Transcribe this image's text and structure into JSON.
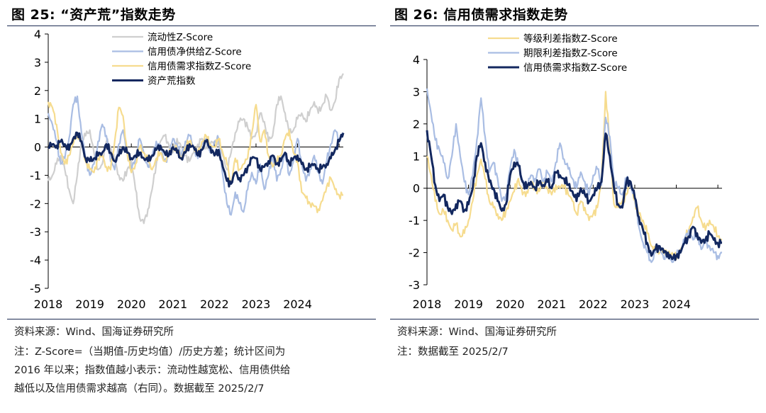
{
  "left_panel": {
    "figure_title": "图 25:   “资产荒”指数走势",
    "source": "资料来源：Wind、国海证券研究所",
    "note_lines": [
      "注：Z-Score=（当期值-历史均值）/历史方差；统计区间为",
      "2016 年以来；指数值越小表示：流动性越宽松、信用债供给",
      "越低以及信用债需求越高（右同）。数据截至 2025/2/7"
    ]
  },
  "right_panel": {
    "figure_title": "图 26:  信用债需求指数走势",
    "source": "资料来源：Wind、国海证券研究所",
    "note_lines": [
      "注：数据截至 2025/2/7"
    ]
  },
  "chart_data": [
    {
      "type": "line",
      "title": "“资产荒”指数走势",
      "xlabel": "",
      "ylabel": "",
      "x_range": [
        2018.0,
        2025.1
      ],
      "ylim": [
        -5,
        4
      ],
      "yticks": [
        -5,
        -4,
        -3,
        -2,
        -1,
        0,
        1,
        2,
        3,
        4
      ],
      "x_tick_labels": [
        "2018",
        "2019",
        "2020",
        "2021",
        "2022",
        "2023",
        "2024"
      ],
      "legend_position": "top",
      "x": [
        2018.0,
        2018.1,
        2018.2,
        2018.3,
        2018.4,
        2018.5,
        2018.6,
        2018.7,
        2018.8,
        2018.9,
        2019.0,
        2019.1,
        2019.2,
        2019.3,
        2019.4,
        2019.5,
        2019.6,
        2019.7,
        2019.8,
        2019.9,
        2020.0,
        2020.1,
        2020.2,
        2020.3,
        2020.4,
        2020.5,
        2020.6,
        2020.7,
        2020.8,
        2020.9,
        2021.0,
        2021.1,
        2021.2,
        2021.3,
        2021.4,
        2021.5,
        2021.6,
        2021.7,
        2021.8,
        2021.9,
        2022.0,
        2022.1,
        2022.2,
        2022.3,
        2022.4,
        2022.5,
        2022.6,
        2022.7,
        2022.8,
        2022.9,
        2023.0,
        2023.1,
        2023.2,
        2023.3,
        2023.4,
        2023.5,
        2023.6,
        2023.7,
        2023.8,
        2023.9,
        2024.0,
        2024.1,
        2024.2,
        2024.3,
        2024.4,
        2024.5,
        2024.6,
        2024.7,
        2024.8,
        2024.9,
        2025.0,
        2025.1
      ],
      "series": [
        {
          "name": "流动性Z-Score",
          "color": "#cfcfcf",
          "width": 2.2,
          "values": [
            -1.2,
            -1.0,
            -0.6,
            -0.3,
            -0.8,
            -1.5,
            -2.0,
            -1.0,
            0.2,
            0.4,
            0.6,
            -0.2,
            -0.8,
            -0.6,
            0.2,
            0.0,
            -0.5,
            -1.0,
            -1.2,
            -0.8,
            -0.5,
            -1.5,
            -2.5,
            -2.7,
            -2.2,
            -1.5,
            -0.6,
            0.2,
            0.4,
            0.1,
            -0.2,
            0.3,
            0.0,
            -0.3,
            -0.5,
            -0.2,
            0.1,
            0.3,
            0.0,
            0.1,
            0.2,
            0.1,
            -0.3,
            -0.8,
            -0.2,
            0.5,
            0.9,
            1.0,
            0.7,
            0.3,
            0.5,
            1.2,
            0.9,
            0.2,
            0.4,
            1.5,
            1.8,
            1.2,
            0.5,
            0.6,
            1.0,
            1.2,
            0.9,
            1.3,
            1.6,
            1.2,
            1.5,
            1.8,
            1.3,
            1.6,
            2.4,
            2.6
          ]
        },
        {
          "name": "信用债净供给Z-Score",
          "color": "#a9bde3",
          "width": 2.2,
          "values": [
            1.2,
            0.8,
            0.2,
            -0.6,
            -0.4,
            0.3,
            1.5,
            1.8,
            0.5,
            -0.4,
            -1.0,
            -0.6,
            0.2,
            0.8,
            0.4,
            -0.5,
            -0.8,
            0.1,
            0.6,
            -0.2,
            -0.8,
            -0.4,
            0.3,
            -0.2,
            -0.7,
            -0.3,
            0.2,
            0.0,
            -0.5,
            -0.3,
            0.3,
            0.1,
            -0.3,
            0.2,
            0.4,
            0.0,
            -0.4,
            0.1,
            0.3,
            -0.2,
            0.2,
            0.3,
            -1.0,
            -2.0,
            -2.4,
            -1.6,
            -2.0,
            -2.3,
            -1.5,
            -0.9,
            -1.3,
            -0.6,
            -1.5,
            -1.0,
            -0.3,
            -1.2,
            -0.8,
            -0.2,
            -1.0,
            -0.5,
            0.3,
            -0.6,
            -1.2,
            -0.8,
            -0.3,
            -0.9,
            -1.3,
            -0.5,
            0.1,
            0.6,
            0.3,
            0.5
          ]
        },
        {
          "name": "信用债需求指数Z-Score",
          "color": "#f6dc8f",
          "width": 2.2,
          "values": [
            1.6,
            1.4,
            0.8,
            -0.2,
            -0.6,
            -0.3,
            0.1,
            0.5,
            0.2,
            -0.5,
            -0.8,
            -0.9,
            -0.4,
            -0.3,
            -0.7,
            -0.8,
            0.2,
            1.4,
            1.1,
            -0.2,
            -0.9,
            -0.6,
            0.0,
            -0.2,
            -0.5,
            -0.8,
            -0.4,
            -0.2,
            -0.5,
            -0.3,
            0.0,
            -0.1,
            -0.4,
            0.0,
            0.2,
            0.0,
            -0.3,
            0.2,
            0.4,
            0.1,
            0.0,
            0.3,
            -0.2,
            -0.6,
            -1.3,
            -0.4,
            -0.8,
            -0.6,
            -0.4,
            0.5,
            1.5,
            0.2,
            0.6,
            -0.3,
            -0.7,
            -0.5,
            -0.3,
            0.3,
            0.6,
            -0.2,
            -0.5,
            -1.6,
            -1.8,
            -2.0,
            -2.1,
            -2.2,
            -1.9,
            -1.4,
            -1.1,
            -1.5,
            -1.7,
            -1.7
          ]
        },
        {
          "name": "资产荒指数",
          "color": "#13285f",
          "width": 3.0,
          "values": [
            0.0,
            0.1,
            0.05,
            0.2,
            0.1,
            -0.1,
            0.3,
            0.5,
            0.2,
            -0.4,
            -0.5,
            -0.4,
            -0.3,
            -0.2,
            0.1,
            -0.2,
            -0.5,
            -0.3,
            0.0,
            -0.2,
            -0.4,
            -0.3,
            -0.2,
            -0.4,
            -0.5,
            -0.3,
            -0.1,
            0.05,
            -0.2,
            -0.3,
            0.0,
            -0.2,
            -0.4,
            -0.2,
            0.1,
            0.0,
            -0.3,
            -0.1,
            0.2,
            0.0,
            -0.3,
            -0.1,
            -0.7,
            -1.2,
            -1.3,
            -0.9,
            -1.1,
            -1.0,
            -0.7,
            -0.4,
            -0.4,
            -0.8,
            -0.7,
            -0.5,
            -0.3,
            -0.6,
            -0.5,
            -0.2,
            -0.6,
            -0.4,
            -0.3,
            -0.6,
            -0.8,
            -0.7,
            -0.6,
            -0.8,
            -0.7,
            -0.6,
            -0.4,
            -0.1,
            0.2,
            0.5
          ]
        }
      ]
    },
    {
      "type": "line",
      "title": "信用债需求指数走势",
      "xlabel": "",
      "ylabel": "",
      "x_range": [
        2018.0,
        2025.1
      ],
      "ylim": [
        -3,
        4
      ],
      "yticks": [
        -3,
        -2,
        -1,
        0,
        1,
        2,
        3,
        4
      ],
      "x_tick_labels": [
        "2018",
        "2019",
        "2020",
        "2021",
        "2022",
        "2023",
        "2024"
      ],
      "legend_position": "top",
      "x": [
        2018.0,
        2018.1,
        2018.2,
        2018.3,
        2018.4,
        2018.5,
        2018.6,
        2018.7,
        2018.8,
        2018.9,
        2019.0,
        2019.1,
        2019.2,
        2019.3,
        2019.4,
        2019.5,
        2019.6,
        2019.7,
        2019.8,
        2019.9,
        2020.0,
        2020.1,
        2020.2,
        2020.3,
        2020.4,
        2020.5,
        2020.6,
        2020.7,
        2020.8,
        2020.9,
        2021.0,
        2021.1,
        2021.2,
        2021.3,
        2021.4,
        2021.5,
        2021.6,
        2021.7,
        2021.8,
        2021.9,
        2022.0,
        2022.1,
        2022.2,
        2022.3,
        2022.4,
        2022.5,
        2022.6,
        2022.7,
        2022.8,
        2022.9,
        2023.0,
        2023.1,
        2023.2,
        2023.3,
        2023.4,
        2023.5,
        2023.6,
        2023.7,
        2023.8,
        2023.9,
        2024.0,
        2024.1,
        2024.2,
        2024.3,
        2024.4,
        2024.5,
        2024.6,
        2024.7,
        2024.8,
        2024.9,
        2025.0,
        2025.1
      ],
      "series": [
        {
          "name": "等级利差指数Z-Score",
          "color": "#f6dc8f",
          "width": 2.2,
          "values": [
            1.0,
            0.4,
            -0.4,
            -0.8,
            -0.7,
            -1.0,
            -1.3,
            -1.1,
            -1.5,
            -1.4,
            -1.0,
            -0.4,
            0.4,
            0.9,
            0.3,
            -0.4,
            -0.6,
            -0.8,
            -1.0,
            -0.7,
            -0.4,
            -0.1,
            0.3,
            -0.2,
            -0.1,
            0.2,
            0.0,
            -0.1,
            0.2,
            0.0,
            -0.2,
            0.1,
            0.0,
            0.1,
            -0.2,
            -0.4,
            -0.8,
            -0.4,
            -0.6,
            -1.0,
            -0.8,
            -0.6,
            0.2,
            3.0,
            1.4,
            -0.5,
            -0.6,
            -0.4,
            -0.2,
            0.2,
            -0.4,
            -0.8,
            -1.0,
            -1.4,
            -1.8,
            -1.9,
            -2.0,
            -1.9,
            -2.1,
            -2.0,
            -2.2,
            -1.9,
            -1.6,
            -1.3,
            -0.9,
            -0.6,
            -1.0,
            -1.3,
            -1.0,
            -1.2,
            -1.5,
            -1.6
          ]
        },
        {
          "name": "期限利差指数Z-Score",
          "color": "#a9bde3",
          "width": 2.2,
          "values": [
            3.1,
            2.3,
            1.5,
            1.2,
            0.8,
            0.3,
            1.0,
            2.0,
            1.0,
            0.2,
            -0.2,
            0.4,
            1.5,
            2.8,
            1.6,
            0.5,
            0.8,
            0.3,
            -0.4,
            -0.2,
            0.6,
            1.2,
            0.7,
            0.2,
            0.0,
            0.4,
            0.3,
            0.6,
            0.2,
            0.5,
            0.2,
            0.8,
            1.4,
            0.9,
            0.6,
            0.3,
            0.0,
            0.5,
            0.2,
            -0.2,
            0.4,
            0.6,
            0.1,
            2.2,
            1.6,
            0.2,
            0.0,
            -0.2,
            0.3,
            0.1,
            -0.3,
            -1.2,
            -1.7,
            -2.0,
            -2.3,
            -2.0,
            -1.8,
            -2.2,
            -2.0,
            -2.3,
            -2.1,
            -2.0,
            -1.6,
            -1.3,
            -1.6,
            -1.4,
            -1.9,
            -1.7,
            -1.8,
            -2.0,
            -2.1,
            -2.0
          ]
        },
        {
          "name": "信用债需求指数Z-Score",
          "color": "#13285f",
          "width": 3.0,
          "values": [
            1.8,
            1.0,
            0.1,
            -0.4,
            -0.2,
            -0.6,
            -0.8,
            -0.5,
            -0.4,
            -0.7,
            -0.5,
            0.0,
            1.0,
            1.4,
            0.8,
            0.2,
            0.0,
            -0.4,
            -0.7,
            -0.5,
            0.4,
            0.8,
            0.7,
            0.2,
            0.0,
            0.2,
            0.0,
            0.2,
            0.1,
            0.2,
            0.0,
            0.5,
            0.4,
            0.3,
            0.1,
            -0.1,
            -0.4,
            0.0,
            -0.2,
            -0.4,
            -0.2,
            0.0,
            0.2,
            1.7,
            1.0,
            0.0,
            -0.5,
            -0.6,
            0.2,
            0.2,
            -0.3,
            -0.9,
            -1.3,
            -1.7,
            -2.1,
            -1.9,
            -1.8,
            -2.0,
            -2.0,
            -2.2,
            -2.1,
            -2.0,
            -1.7,
            -1.5,
            -1.2,
            -1.4,
            -1.7,
            -1.6,
            -1.4,
            -1.6,
            -1.7,
            -1.7
          ]
        }
      ]
    }
  ]
}
